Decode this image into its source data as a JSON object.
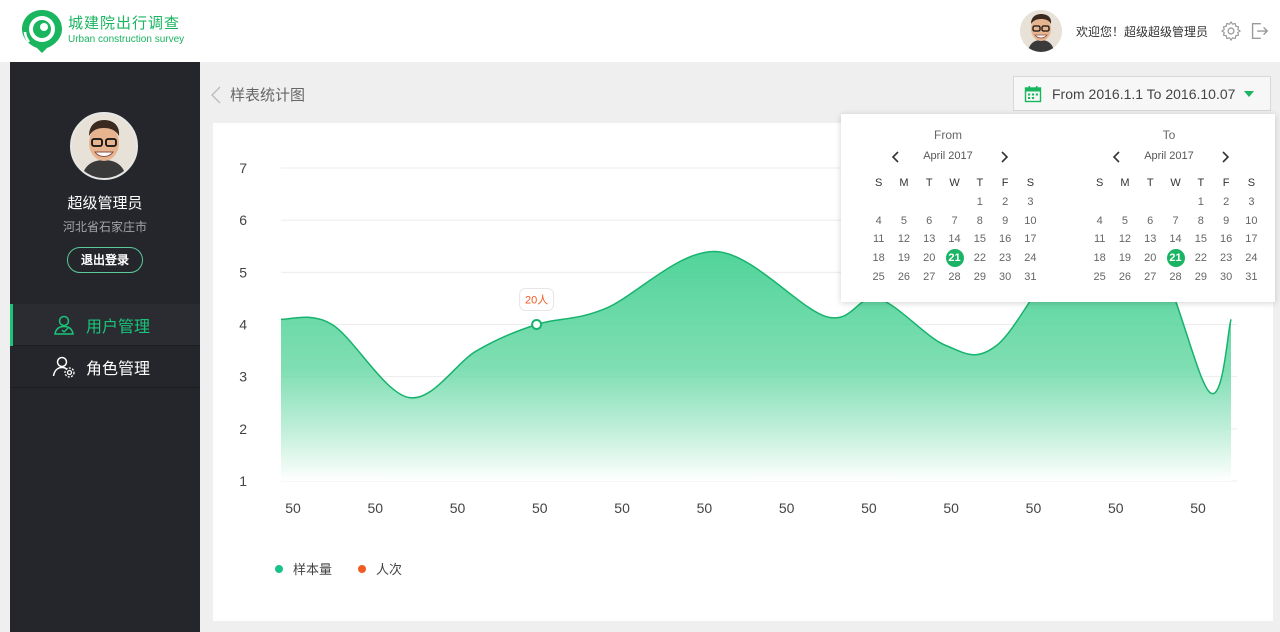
{
  "header": {
    "logo_cn": "城建院出行调查",
    "logo_en": "Urban construction survey",
    "welcome": "欢迎您！超级超级管理员"
  },
  "sidebar": {
    "user_name": "超级管理员",
    "user_location": "河北省石家庄市",
    "logout_label": "退出登录",
    "items": [
      {
        "label": "用户管理",
        "icon": "user-icon",
        "active": true
      },
      {
        "label": "角色管理",
        "icon": "user-settings-icon",
        "active": false
      }
    ]
  },
  "breadcrumb": {
    "title": "样表统计图"
  },
  "date_range": {
    "label": "From 2016.1.1 To 2016.10.07"
  },
  "calendar": {
    "from": {
      "title": "From",
      "month": "April 2017",
      "selected": 21
    },
    "to": {
      "title": "To",
      "month": "April 2017",
      "selected": 21
    },
    "weekdays": [
      "S",
      "M",
      "T",
      "W",
      "T",
      "F",
      "S"
    ],
    "weeks": [
      [
        "",
        "",
        "",
        "",
        "1",
        "2",
        "3"
      ],
      [
        "4",
        "5",
        "6",
        "7",
        "8",
        "9",
        "10"
      ],
      [
        "11",
        "12",
        "13",
        "14",
        "15",
        "16",
        "17"
      ],
      [
        "18",
        "19",
        "20",
        "21",
        "22",
        "23",
        "24"
      ],
      [
        "25",
        "26",
        "27",
        "28",
        "29",
        "30",
        "31"
      ]
    ]
  },
  "chart_data": {
    "type": "area",
    "title": "",
    "xlabel": "",
    "ylabel": "",
    "categories": [
      "50",
      "50",
      "50",
      "50",
      "50",
      "50",
      "50",
      "50",
      "50",
      "50",
      "50",
      "50"
    ],
    "ylim": [
      1,
      7
    ],
    "yticks": [
      "1",
      "2",
      "3",
      "4",
      "5",
      "6",
      "7"
    ],
    "grid": true,
    "series": [
      {
        "name": "样本量",
        "color": "#19c28a",
        "x": [
          0,
          0.6,
          1.5,
          2.3,
          3.0,
          3.8,
          5.1,
          6.4,
          7.0,
          7.8,
          8.4,
          9.3,
          10.2,
          10.9,
          11.15
        ],
        "values": [
          4.1,
          4.0,
          2.6,
          3.5,
          4.0,
          4.3,
          5.4,
          4.15,
          4.5,
          3.6,
          3.6,
          5.5,
          5.5,
          2.7,
          4.1
        ]
      },
      {
        "name": "人次",
        "color": "#f05a23"
      }
    ],
    "annotation": {
      "label": "20人",
      "x": 3.0,
      "y": 4.0
    },
    "legend": "bottom-left"
  }
}
